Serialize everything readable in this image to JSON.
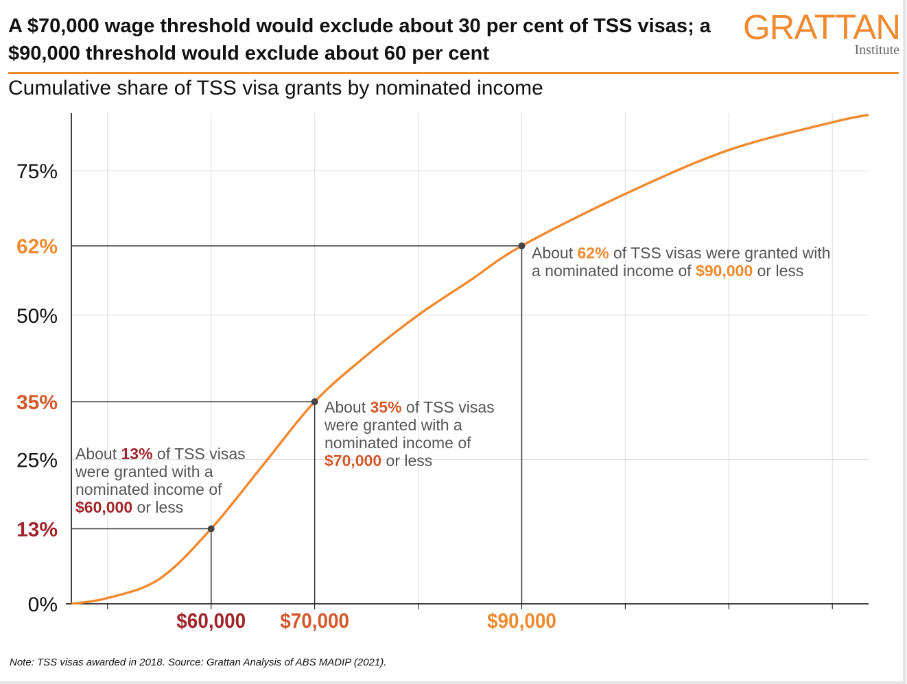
{
  "header": {
    "title": "A $70,000 wage threshold would exclude about 30 per cent of TSS visas; a $90,000 threshold would exclude about 60 per cent",
    "logo_main": "GRATTAN",
    "logo_sub": "Institute"
  },
  "colors": {
    "curve": "#F08A30",
    "red": "#A0252B",
    "dark_orange": "#D4582A",
    "orange": "#F08A30",
    "grid": "#dddddd",
    "guide": "#333333"
  },
  "chart_data": {
    "type": "line",
    "title": "Cumulative share of TSS visa grants by nominated income",
    "xlabel": "",
    "ylabel": "",
    "xlim": [
      46500,
      123500
    ],
    "ylim": [
      0,
      85
    ],
    "x_gridlines": [
      50000,
      60000,
      70000,
      80000,
      90000,
      100000,
      110000,
      120000
    ],
    "y_ticks": [
      {
        "v": 0,
        "label": "0%",
        "style": "plain"
      },
      {
        "v": 13,
        "label": "13%",
        "style": "red"
      },
      {
        "v": 25,
        "label": "25%",
        "style": "plain"
      },
      {
        "v": 35,
        "label": "35%",
        "style": "dark_orange"
      },
      {
        "v": 50,
        "label": "50%",
        "style": "plain"
      },
      {
        "v": 62,
        "label": "62%",
        "style": "orange"
      },
      {
        "v": 75,
        "label": "75%",
        "style": "plain"
      }
    ],
    "x_labels": [
      {
        "v": 60000,
        "label": "$60,000",
        "style": "red"
      },
      {
        "v": 70000,
        "label": "$70,000",
        "style": "dark_orange"
      },
      {
        "v": 90000,
        "label": "$90,000",
        "style": "orange"
      }
    ],
    "series": [
      {
        "name": "Cumulative share",
        "x": [
          46500,
          50000,
          55000,
          60000,
          65000,
          70000,
          75000,
          80000,
          85000,
          90000,
          100000,
          110000,
          120000,
          123500
        ],
        "y": [
          0,
          1,
          4.3,
          13,
          24,
          35,
          43,
          50,
          56,
          62,
          71,
          78.6,
          83.4,
          84.7
        ]
      }
    ],
    "highlights": [
      {
        "x": 60000,
        "y": 13
      },
      {
        "x": 70000,
        "y": 35
      },
      {
        "x": 90000,
        "y": 62
      }
    ],
    "annotations": [
      {
        "pre": "About ",
        "pct": "13%",
        "mid": " of TSS visas were granted with a nominated income of ",
        "amt": "$60,000",
        "post": " or less",
        "style": "red"
      },
      {
        "pre": "About ",
        "pct": "35%",
        "mid": " of TSS visas were granted with a nominated income of ",
        "amt": "$70,000",
        "post": " or less",
        "style": "dark_orange"
      },
      {
        "pre": "About ",
        "pct": "62%",
        "mid": " of TSS visas were granted with a nominated income of ",
        "amt": "$90,000",
        "post": " or less",
        "style": "orange"
      }
    ]
  },
  "footer": {
    "note": "Note: TSS visas awarded in 2018. Source: Grattan Analysis of ABS MADIP (2021)."
  }
}
